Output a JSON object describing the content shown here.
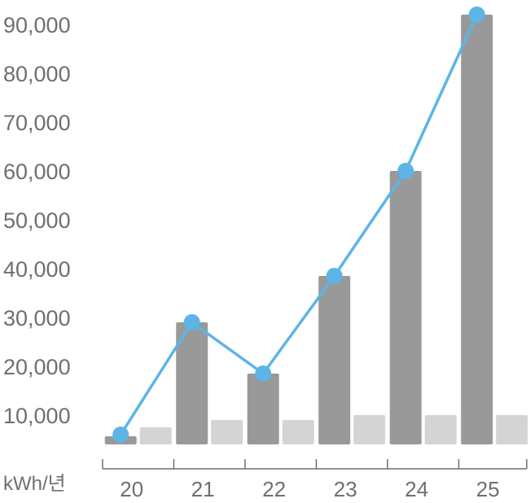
{
  "chart_data": {
    "type": "bar",
    "categories": [
      "20",
      "21",
      "22",
      "23",
      "24",
      "25"
    ],
    "series": [
      {
        "values": [
          2000,
          29000,
          18500,
          38500,
          60000,
          92000
        ],
        "color": "#999999"
      },
      {
        "values": [
          3500,
          5000,
          5000,
          6000,
          6000,
          6000
        ],
        "color": "#d4d4d4"
      },
      {
        "type": "line",
        "values": [
          2000,
          29000,
          18500,
          38500,
          60000,
          92000
        ],
        "color": "#5db4e6"
      }
    ],
    "y_ticks": [
      "10,000",
      "20,000",
      "30,000",
      "40,000",
      "50,000",
      "60,000",
      "70,000",
      "80,000",
      "90,000"
    ],
    "ylabel": "kWh/년",
    "ylim": [
      0,
      95000
    ],
    "grid": false,
    "legend": "none"
  }
}
